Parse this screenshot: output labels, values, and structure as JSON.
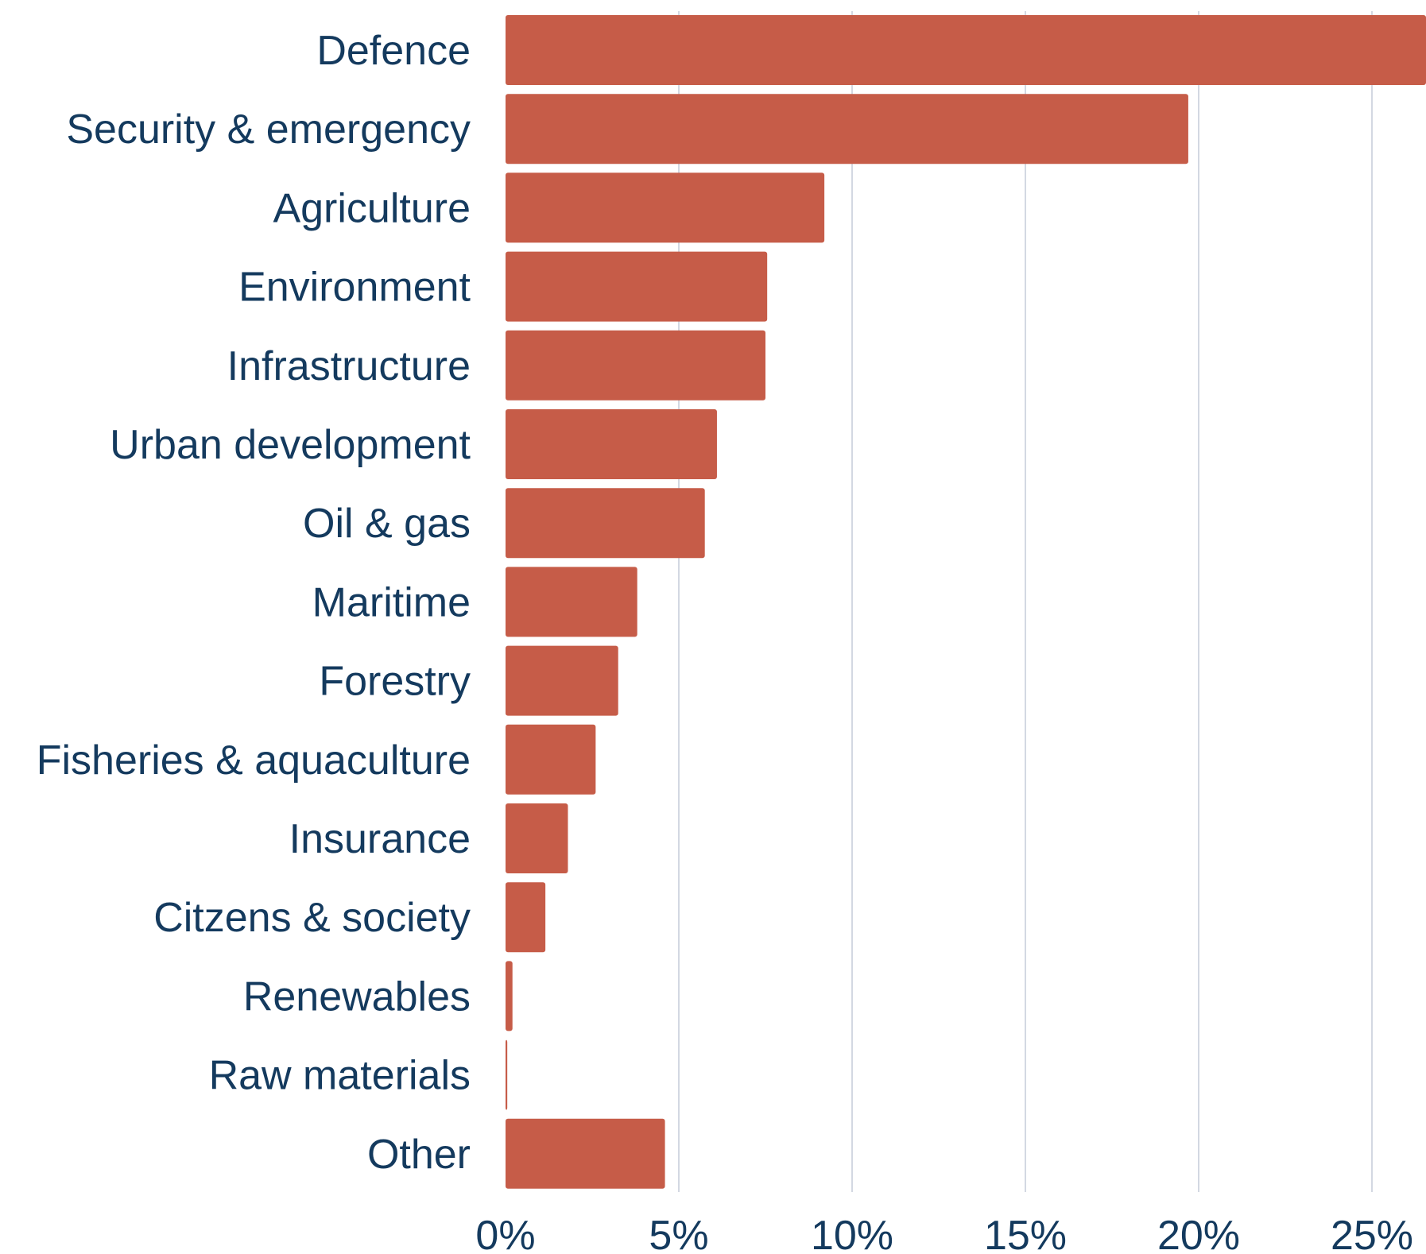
{
  "chart_data": {
    "type": "bar",
    "orientation": "horizontal",
    "title": "",
    "xlabel": "",
    "ylabel": "",
    "categories": [
      "Defence",
      "Security & emergency",
      "Agriculture",
      "Environment",
      "Infrastructure",
      "Urban development",
      "Oil & gas",
      "Maritime",
      "Forestry",
      "Fisheries & aquaculture",
      "Insurance",
      "Citzens & society",
      "Renewables",
      "Raw materials",
      "Other"
    ],
    "values": [
      27.5,
      19.7,
      9.2,
      7.55,
      7.5,
      6.1,
      5.75,
      3.8,
      3.25,
      2.6,
      1.8,
      1.15,
      0.2,
      0.05,
      4.6
    ],
    "xlim": [
      0,
      26.5
    ],
    "ticks": [
      0,
      5,
      10,
      15,
      20,
      25
    ],
    "tick_labels": [
      "0%",
      "5%",
      "10%",
      "15%",
      "20%",
      "25%"
    ],
    "grid": "vertical",
    "legend": "none",
    "colors": {
      "bar": "#c65c48",
      "text": "#143a5e",
      "grid": "#d3d8e2"
    }
  }
}
